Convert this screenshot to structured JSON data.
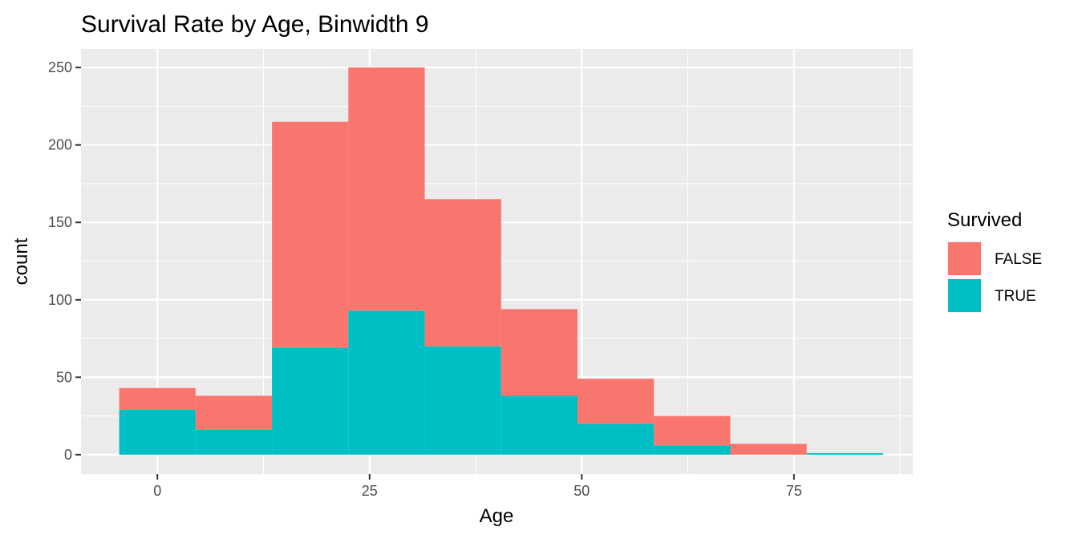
{
  "chart_data": {
    "type": "histogram-stacked",
    "title": "Survival Rate by Age, Binwidth 9",
    "xlabel": "Age",
    "ylabel": "count",
    "xlim": [
      -9,
      89
    ],
    "ylim": [
      -12.5,
      262
    ],
    "x_ticks": [
      0,
      25,
      50,
      75
    ],
    "y_ticks": [
      0,
      50,
      100,
      150,
      200,
      250
    ],
    "bins": [
      {
        "x0": -4.5,
        "x1": 4.5
      },
      {
        "x0": 4.5,
        "x1": 13.5
      },
      {
        "x0": 13.5,
        "x1": 22.5
      },
      {
        "x0": 22.5,
        "x1": 31.5
      },
      {
        "x0": 31.5,
        "x1": 40.5
      },
      {
        "x0": 40.5,
        "x1": 49.5
      },
      {
        "x0": 49.5,
        "x1": 58.5
      },
      {
        "x0": 58.5,
        "x1": 67.5
      },
      {
        "x0": 67.5,
        "x1": 76.5
      },
      {
        "x0": 76.5,
        "x1": 85.5
      }
    ],
    "series": [
      {
        "name": "FALSE",
        "color": "#F8766D",
        "values": [
          14,
          22,
          146,
          157,
          95,
          56,
          29,
          19,
          7,
          0
        ]
      },
      {
        "name": "TRUE",
        "color": "#00BFC4",
        "values": [
          29,
          16,
          69,
          93,
          70,
          38,
          20,
          6,
          0,
          1
        ]
      }
    ],
    "legend": {
      "title": "Survived",
      "position": "right"
    },
    "grid": true,
    "panel_background": "#EBEBEB"
  }
}
